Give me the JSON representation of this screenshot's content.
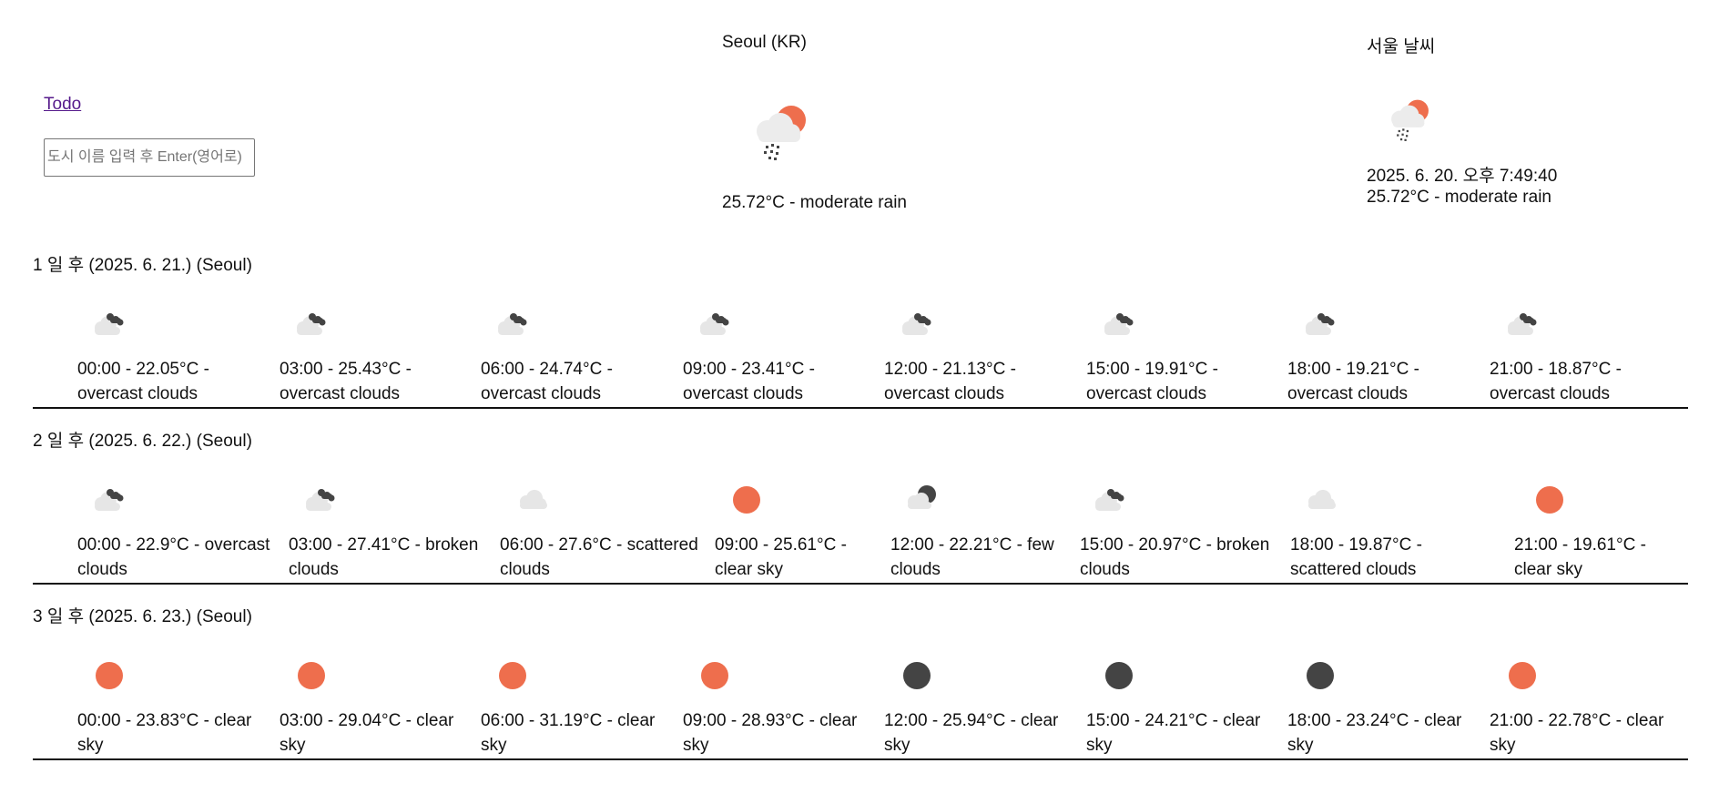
{
  "nav": {
    "todo_label": "Todo"
  },
  "search": {
    "placeholder": "도시 이름 입력 후 Enter(영어로)",
    "value": ""
  },
  "current": {
    "city": "Seoul (KR)",
    "description": "25.72°C - moderate rain",
    "icon": "rain-cloud-sun-icon"
  },
  "local": {
    "title": "서울 날씨",
    "datetime": "2025. 6. 20. 오후 7:49:40",
    "description": "25.72°C - moderate rain",
    "icon": "rain-cloud-sun-icon"
  },
  "colors": {
    "sun": "#ee6e4d",
    "cloud": "#e6e6e6",
    "dark": "#444444",
    "link": "#551a8b"
  },
  "forecast": [
    {
      "title": "1 일 후 (2025. 6. 21.) (Seoul)",
      "items": [
        {
          "line1": "00:00 - 22.05°C -",
          "line2": "overcast clouds",
          "icon": "overcast-clouds-icon"
        },
        {
          "line1": "03:00 - 25.43°C -",
          "line2": "overcast clouds",
          "icon": "overcast-clouds-icon"
        },
        {
          "line1": "06:00 - 24.74°C -",
          "line2": "overcast clouds",
          "icon": "overcast-clouds-icon"
        },
        {
          "line1": "09:00 - 23.41°C -",
          "line2": "overcast clouds",
          "icon": "overcast-clouds-icon"
        },
        {
          "line1": "12:00 - 21.13°C -",
          "line2": "overcast clouds",
          "icon": "overcast-clouds-icon"
        },
        {
          "line1": "15:00 - 19.91°C -",
          "line2": "overcast clouds",
          "icon": "overcast-clouds-icon"
        },
        {
          "line1": "18:00 - 19.21°C -",
          "line2": "overcast clouds",
          "icon": "overcast-clouds-icon"
        },
        {
          "line1": "21:00 - 18.87°C -",
          "line2": "overcast clouds",
          "icon": "overcast-clouds-icon"
        }
      ]
    },
    {
      "title": "2 일 후 (2025. 6. 22.) (Seoul)",
      "items": [
        {
          "line1": "00:00 - 22.9°C - overcast",
          "line2": "clouds",
          "icon": "overcast-clouds-icon"
        },
        {
          "line1": "03:00 - 27.41°C - broken",
          "line2": "clouds",
          "icon": "broken-clouds-icon"
        },
        {
          "line1": "06:00 - 27.6°C - scattered",
          "line2": "clouds",
          "icon": "scattered-clouds-icon"
        },
        {
          "line1": "09:00 - 25.61°C -",
          "line2": "clear sky",
          "icon": "clear-sky-sun-icon"
        },
        {
          "line1": "12:00 - 22.21°C - few",
          "line2": "clouds",
          "icon": "few-clouds-moon-icon"
        },
        {
          "line1": "15:00 - 20.97°C - broken",
          "line2": "clouds",
          "icon": "broken-clouds-icon"
        },
        {
          "line1": "18:00 - 19.87°C -",
          "line2": "scattered clouds",
          "icon": "scattered-clouds-icon"
        },
        {
          "line1": "21:00 - 19.61°C -",
          "line2": "clear sky",
          "icon": "clear-sky-sun-icon"
        }
      ]
    },
    {
      "title": "3 일 후 (2025. 6. 23.) (Seoul)",
      "items": [
        {
          "line1": "00:00 - 23.83°C - clear",
          "line2": "sky",
          "icon": "clear-sky-sun-icon"
        },
        {
          "line1": "03:00 - 29.04°C - clear",
          "line2": "sky",
          "icon": "clear-sky-sun-icon"
        },
        {
          "line1": "06:00 - 31.19°C - clear",
          "line2": "sky",
          "icon": "clear-sky-sun-icon"
        },
        {
          "line1": "09:00 - 28.93°C - clear",
          "line2": "sky",
          "icon": "clear-sky-sun-icon"
        },
        {
          "line1": "12:00 - 25.94°C - clear",
          "line2": "sky",
          "icon": "clear-sky-moon-icon"
        },
        {
          "line1": "15:00 - 24.21°C - clear",
          "line2": "sky",
          "icon": "clear-sky-moon-icon"
        },
        {
          "line1": "18:00 - 23.24°C - clear",
          "line2": "sky",
          "icon": "clear-sky-moon-icon"
        },
        {
          "line1": "21:00 - 22.78°C - clear",
          "line2": "sky",
          "icon": "clear-sky-sun-icon"
        }
      ]
    }
  ]
}
